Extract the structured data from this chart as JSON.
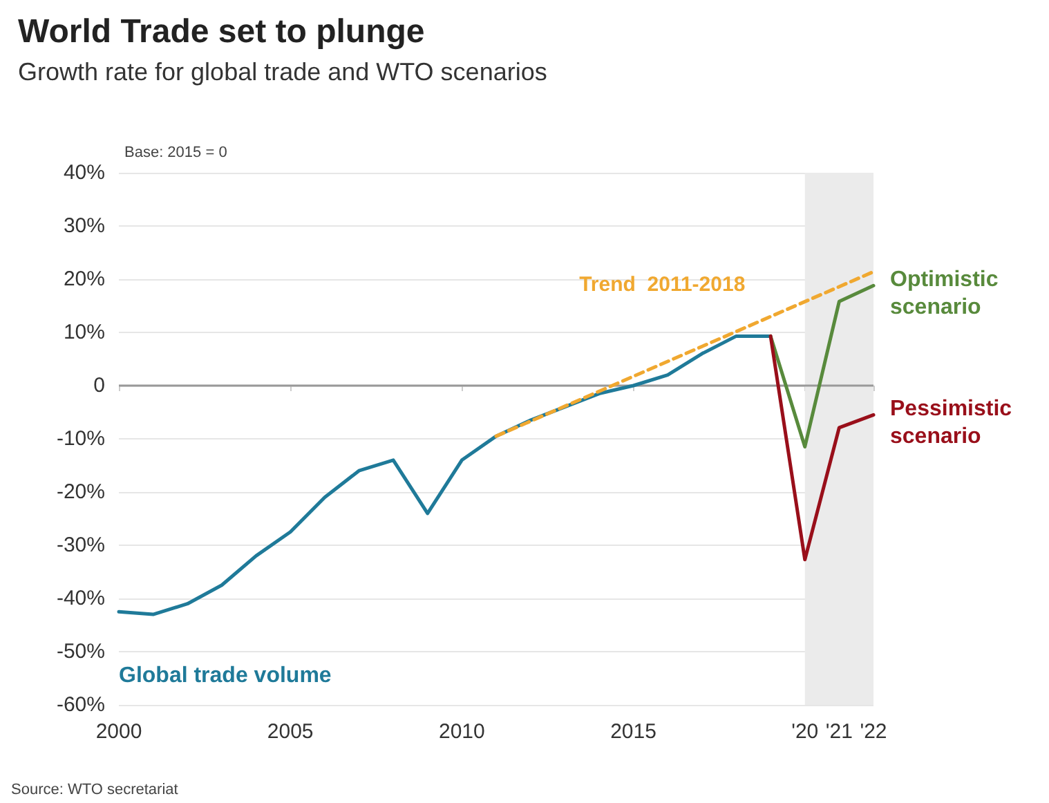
{
  "chart_data": {
    "type": "line",
    "title": "World Trade set to plunge",
    "subtitle": "Growth rate for global trade and WTO scenarios",
    "annotations": [
      "Base: 2015 = 0",
      "Source: WTO secretariat"
    ],
    "xlim": [
      2000,
      2022
    ],
    "xticks": [
      2000,
      2005,
      2010,
      2015,
      {
        "value": 2020,
        "label": "'20"
      },
      {
        "value": 2021,
        "label": "'21"
      },
      {
        "value": 2022,
        "label": "'22"
      }
    ],
    "ylim": [
      -60,
      40
    ],
    "yticks": [
      {
        "value": -60,
        "label": "-60%"
      },
      {
        "value": -50,
        "label": "-50%"
      },
      {
        "value": -40,
        "label": "-40%"
      },
      {
        "value": -30,
        "label": "-30%"
      },
      {
        "value": -20,
        "label": "-20%"
      },
      {
        "value": -10,
        "label": "-10%"
      },
      0,
      {
        "value": 10,
        "label": "10%"
      },
      {
        "value": 20,
        "label": "20%"
      },
      {
        "value": 30,
        "label": "30%"
      },
      {
        "value": 40,
        "label": "40%"
      }
    ],
    "grid": "y",
    "marker": "none",
    "line_style": "solid",
    "legend": false,
    "bands": [
      {
        "axis": "x",
        "from": 2020,
        "to": 2022,
        "color": "#ebebeb"
      }
    ],
    "ref_lines": [
      {
        "axis": "y",
        "value": 0,
        "color": "#999999"
      }
    ],
    "series": [
      {
        "name": "Global trade volume",
        "color": "#1f7a99",
        "x": [
          2000,
          2001,
          2002,
          2003,
          2004,
          2005,
          2006,
          2007,
          2008,
          2009,
          2010,
          2011,
          2012,
          2013,
          2014,
          2015,
          2016,
          2017,
          2018,
          2019
        ],
        "values": [
          -42.5,
          -43,
          -41,
          -37.5,
          -32,
          -27.5,
          -21,
          -16,
          -14,
          -24,
          -14,
          -9.5,
          -6.5,
          -4,
          -1.5,
          0,
          2,
          6,
          9.3,
          9.3
        ]
      },
      {
        "name": "Trend  2011-2018",
        "color": "#f0a830",
        "line_style": "dashed",
        "x": [
          2011,
          2022
        ],
        "values": [
          -9.5,
          21.4
        ]
      },
      {
        "name": "Optimistic scenario",
        "color": "#588a3c",
        "x": [
          2019,
          2020,
          2021,
          2022
        ],
        "values": [
          9.3,
          -11.5,
          15.8,
          18.8
        ]
      },
      {
        "name": "Pessimistic scenario",
        "color": "#990f1a",
        "x": [
          2019,
          2020,
          2021,
          2022
        ],
        "values": [
          9.3,
          -32.7,
          -7.9,
          -5.5
        ]
      }
    ]
  }
}
